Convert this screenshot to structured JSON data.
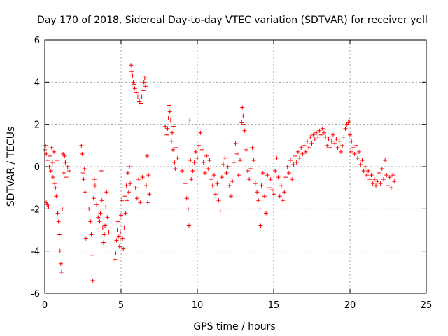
{
  "chart_data": {
    "type": "scatter",
    "title": "Day 170 of 2018, Sidereal Day-to-day VTEC variation (SDTVAR) for receiver yell",
    "xlabel": "GPS time / hours",
    "ylabel": "SDTVAR / TECUs",
    "xlim": [
      0,
      25
    ],
    "ylim": [
      -6,
      6
    ],
    "xticks": [
      0,
      5,
      10,
      15,
      20,
      25
    ],
    "yticks": [
      -6,
      -4,
      -2,
      0,
      2,
      4,
      6
    ],
    "grid": true,
    "marker": "+",
    "series": [
      {
        "name": "SDTVAR",
        "color": "#ff0000",
        "points": [
          [
            0.0,
            0.8
          ],
          [
            0.05,
            1.0
          ],
          [
            0.1,
            0.6
          ],
          [
            0.1,
            -1.7
          ],
          [
            0.15,
            -1.8
          ],
          [
            0.2,
            0.3
          ],
          [
            0.25,
            -1.9
          ],
          [
            0.3,
            0.0
          ],
          [
            0.35,
            0.5
          ],
          [
            0.4,
            -0.2
          ],
          [
            0.45,
            0.9
          ],
          [
            0.5,
            0.2
          ],
          [
            0.55,
            -0.5
          ],
          [
            0.6,
            0.7
          ],
          [
            0.65,
            -0.8
          ],
          [
            0.7,
            -1.0
          ],
          [
            0.75,
            -1.4
          ],
          [
            0.8,
            0.3
          ],
          [
            0.85,
            -2.2
          ],
          [
            0.9,
            -2.6
          ],
          [
            0.95,
            -3.2
          ],
          [
            1.0,
            -4.0
          ],
          [
            1.05,
            -4.6
          ],
          [
            1.1,
            -5.0
          ],
          [
            1.15,
            -2.0
          ],
          [
            1.2,
            0.6
          ],
          [
            1.25,
            -0.3
          ],
          [
            1.3,
            0.5
          ],
          [
            1.35,
            0.2
          ],
          [
            1.4,
            -0.5
          ],
          [
            1.5,
            0.0
          ],
          [
            1.6,
            -0.2
          ],
          [
            2.4,
            1.0
          ],
          [
            2.45,
            0.6
          ],
          [
            2.5,
            -0.3
          ],
          [
            2.55,
            -0.6
          ],
          [
            2.6,
            -0.1
          ],
          [
            2.65,
            -1.2
          ],
          [
            2.7,
            -3.4
          ],
          [
            2.9,
            -2.0
          ],
          [
            3.0,
            -2.6
          ],
          [
            3.05,
            -3.2
          ],
          [
            3.1,
            -4.2
          ],
          [
            3.15,
            -5.4
          ],
          [
            3.2,
            -1.5
          ],
          [
            3.25,
            -0.6
          ],
          [
            3.3,
            -0.9
          ],
          [
            3.4,
            -1.8
          ],
          [
            3.5,
            -2.4
          ],
          [
            3.55,
            -3.0
          ],
          [
            3.6,
            -2.6
          ],
          [
            3.65,
            -2.2
          ],
          [
            3.7,
            -0.2
          ],
          [
            3.75,
            -1.6
          ],
          [
            3.8,
            -2.9
          ],
          [
            3.85,
            -3.6
          ],
          [
            3.9,
            -3.2
          ],
          [
            3.95,
            -2.8
          ],
          [
            4.0,
            -1.9
          ],
          [
            4.05,
            -1.2
          ],
          [
            4.1,
            -2.4
          ],
          [
            4.2,
            -3.1
          ],
          [
            4.6,
            -4.4
          ],
          [
            4.65,
            -4.1
          ],
          [
            4.7,
            -3.5
          ],
          [
            4.75,
            -3.0
          ],
          [
            4.8,
            -2.6
          ],
          [
            4.85,
            -3.3
          ],
          [
            4.9,
            -3.8
          ],
          [
            4.95,
            -3.1
          ],
          [
            5.0,
            -2.3
          ],
          [
            5.05,
            -1.6
          ],
          [
            5.1,
            -3.4
          ],
          [
            5.15,
            -3.9
          ],
          [
            5.2,
            -2.9
          ],
          [
            5.25,
            -1.4
          ],
          [
            5.3,
            -2.2
          ],
          [
            5.35,
            -0.9
          ],
          [
            5.4,
            -1.6
          ],
          [
            5.45,
            -0.3
          ],
          [
            5.5,
            -1.2
          ],
          [
            5.55,
            0.0
          ],
          [
            5.6,
            -0.8
          ],
          [
            5.65,
            4.8
          ],
          [
            5.7,
            4.5
          ],
          [
            5.75,
            4.3
          ],
          [
            5.8,
            4.0
          ],
          [
            5.85,
            3.9
          ],
          [
            5.9,
            3.7
          ],
          [
            5.95,
            -1.0
          ],
          [
            6.0,
            3.5
          ],
          [
            6.05,
            -1.5
          ],
          [
            6.1,
            3.3
          ],
          [
            6.15,
            -0.6
          ],
          [
            6.2,
            3.1
          ],
          [
            6.25,
            -1.7
          ],
          [
            6.3,
            3.0
          ],
          [
            6.35,
            3.3
          ],
          [
            6.4,
            -0.5
          ],
          [
            6.45,
            3.6
          ],
          [
            6.5,
            4.0
          ],
          [
            6.55,
            4.2
          ],
          [
            6.6,
            3.8
          ],
          [
            6.65,
            -0.9
          ],
          [
            6.7,
            0.5
          ],
          [
            6.75,
            -1.7
          ],
          [
            6.8,
            -0.4
          ],
          [
            6.85,
            -1.3
          ],
          [
            7.9,
            1.9
          ],
          [
            8.0,
            1.5
          ],
          [
            8.05,
            1.8
          ],
          [
            8.1,
            2.3
          ],
          [
            8.15,
            2.9
          ],
          [
            8.2,
            2.6
          ],
          [
            8.25,
            2.2
          ],
          [
            8.3,
            1.2
          ],
          [
            8.35,
            1.6
          ],
          [
            8.4,
            0.8
          ],
          [
            8.45,
            1.9
          ],
          [
            8.5,
            0.2
          ],
          [
            8.55,
            -0.1
          ],
          [
            8.6,
            0.9
          ],
          [
            8.7,
            0.4
          ],
          [
            9.0,
            -0.2
          ],
          [
            9.2,
            -0.8
          ],
          [
            9.3,
            -1.5
          ],
          [
            9.4,
            -2.0
          ],
          [
            9.45,
            -2.8
          ],
          [
            9.5,
            2.2
          ],
          [
            9.55,
            0.3
          ],
          [
            9.6,
            -0.6
          ],
          [
            9.7,
            -0.2
          ],
          [
            9.8,
            0.2
          ],
          [
            9.9,
            0.7
          ],
          [
            10.0,
            0.4
          ],
          [
            10.1,
            1.0
          ],
          [
            10.2,
            1.6
          ],
          [
            10.3,
            0.8
          ],
          [
            10.4,
            0.2
          ],
          [
            10.5,
            -0.3
          ],
          [
            10.6,
            0.5
          ],
          [
            10.7,
            -0.1
          ],
          [
            10.8,
            0.3
          ],
          [
            10.9,
            -0.6
          ],
          [
            11.0,
            -0.9
          ],
          [
            11.1,
            -0.4
          ],
          [
            11.2,
            -1.3
          ],
          [
            11.3,
            -0.8
          ],
          [
            11.4,
            -1.6
          ],
          [
            11.5,
            -2.1
          ],
          [
            11.6,
            -0.5
          ],
          [
            11.7,
            0.1
          ],
          [
            11.8,
            0.4
          ],
          [
            11.9,
            -0.3
          ],
          [
            12.0,
            0.0
          ],
          [
            12.1,
            -0.9
          ],
          [
            12.2,
            -1.4
          ],
          [
            12.3,
            -0.7
          ],
          [
            12.4,
            0.2
          ],
          [
            12.5,
            1.1
          ],
          [
            12.6,
            0.6
          ],
          [
            12.7,
            -0.4
          ],
          [
            12.8,
            0.3
          ],
          [
            12.9,
            2.1
          ],
          [
            12.95,
            2.8
          ],
          [
            13.0,
            2.4
          ],
          [
            13.05,
            2.0
          ],
          [
            13.1,
            1.7
          ],
          [
            13.2,
            0.8
          ],
          [
            13.3,
            -0.2
          ],
          [
            13.4,
            -0.6
          ],
          [
            13.5,
            -0.1
          ],
          [
            13.6,
            0.9
          ],
          [
            13.7,
            0.3
          ],
          [
            13.8,
            -0.8
          ],
          [
            13.9,
            -1.2
          ],
          [
            14.0,
            -1.6
          ],
          [
            14.1,
            -2.0
          ],
          [
            14.15,
            -2.8
          ],
          [
            14.2,
            -0.9
          ],
          [
            14.3,
            -0.3
          ],
          [
            14.4,
            -1.4
          ],
          [
            14.5,
            -2.2
          ],
          [
            14.6,
            -0.4
          ],
          [
            14.7,
            -1.0
          ],
          [
            14.8,
            -0.6
          ],
          [
            14.9,
            -1.1
          ],
          [
            15.0,
            -1.3
          ],
          [
            15.1,
            -0.2
          ],
          [
            15.2,
            0.4
          ],
          [
            15.3,
            -0.5
          ],
          [
            15.4,
            -1.4
          ],
          [
            15.5,
            -0.9
          ],
          [
            15.6,
            -1.6
          ],
          [
            15.7,
            -1.2
          ],
          [
            15.8,
            -0.5
          ],
          [
            15.9,
            0.0
          ],
          [
            16.0,
            -0.3
          ],
          [
            16.1,
            0.3
          ],
          [
            16.2,
            -0.6
          ],
          [
            16.3,
            0.1
          ],
          [
            16.4,
            0.5
          ],
          [
            16.5,
            0.2
          ],
          [
            16.6,
            0.7
          ],
          [
            16.7,
            0.4
          ],
          [
            16.8,
            0.9
          ],
          [
            16.9,
            0.6
          ],
          [
            17.0,
            1.0
          ],
          [
            17.1,
            0.7
          ],
          [
            17.2,
            1.2
          ],
          [
            17.3,
            0.9
          ],
          [
            17.4,
            1.4
          ],
          [
            17.5,
            1.1
          ],
          [
            17.6,
            1.5
          ],
          [
            17.7,
            1.3
          ],
          [
            17.8,
            1.6
          ],
          [
            17.9,
            1.4
          ],
          [
            18.0,
            1.7
          ],
          [
            18.1,
            1.5
          ],
          [
            18.2,
            1.8
          ],
          [
            18.3,
            1.6
          ],
          [
            18.4,
            1.4
          ],
          [
            18.5,
            1.0
          ],
          [
            18.6,
            1.3
          ],
          [
            18.7,
            0.9
          ],
          [
            18.8,
            1.2
          ],
          [
            18.9,
            1.5
          ],
          [
            19.0,
            1.1
          ],
          [
            19.1,
            1.3
          ],
          [
            19.2,
            0.9
          ],
          [
            19.3,
            1.2
          ],
          [
            19.4,
            0.7
          ],
          [
            19.5,
            1.0
          ],
          [
            19.6,
            1.4
          ],
          [
            19.7,
            1.8
          ],
          [
            19.8,
            2.0
          ],
          [
            19.9,
            2.1
          ],
          [
            19.95,
            2.2
          ],
          [
            20.0,
            1.5
          ],
          [
            20.05,
            0.7
          ],
          [
            20.1,
            1.2
          ],
          [
            20.2,
            0.9
          ],
          [
            20.3,
            0.6
          ],
          [
            20.4,
            1.0
          ],
          [
            20.5,
            0.4
          ],
          [
            20.6,
            0.7
          ],
          [
            20.7,
            0.1
          ],
          [
            20.8,
            0.3
          ],
          [
            20.9,
            -0.2
          ],
          [
            21.0,
            0.0
          ],
          [
            21.1,
            -0.4
          ],
          [
            21.2,
            -0.2
          ],
          [
            21.3,
            -0.6
          ],
          [
            21.4,
            -0.4
          ],
          [
            21.5,
            -0.8
          ],
          [
            21.6,
            -0.6
          ],
          [
            21.7,
            -0.9
          ],
          [
            21.8,
            -0.7
          ],
          [
            21.9,
            -0.3
          ],
          [
            22.0,
            -0.8
          ],
          [
            22.1,
            -0.1
          ],
          [
            22.2,
            -0.6
          ],
          [
            22.3,
            0.3
          ],
          [
            22.4,
            -0.4
          ],
          [
            22.5,
            -0.9
          ],
          [
            22.6,
            -0.5
          ],
          [
            22.7,
            -1.0
          ],
          [
            22.8,
            -0.4
          ],
          [
            22.9,
            -0.7
          ]
        ]
      }
    ]
  }
}
